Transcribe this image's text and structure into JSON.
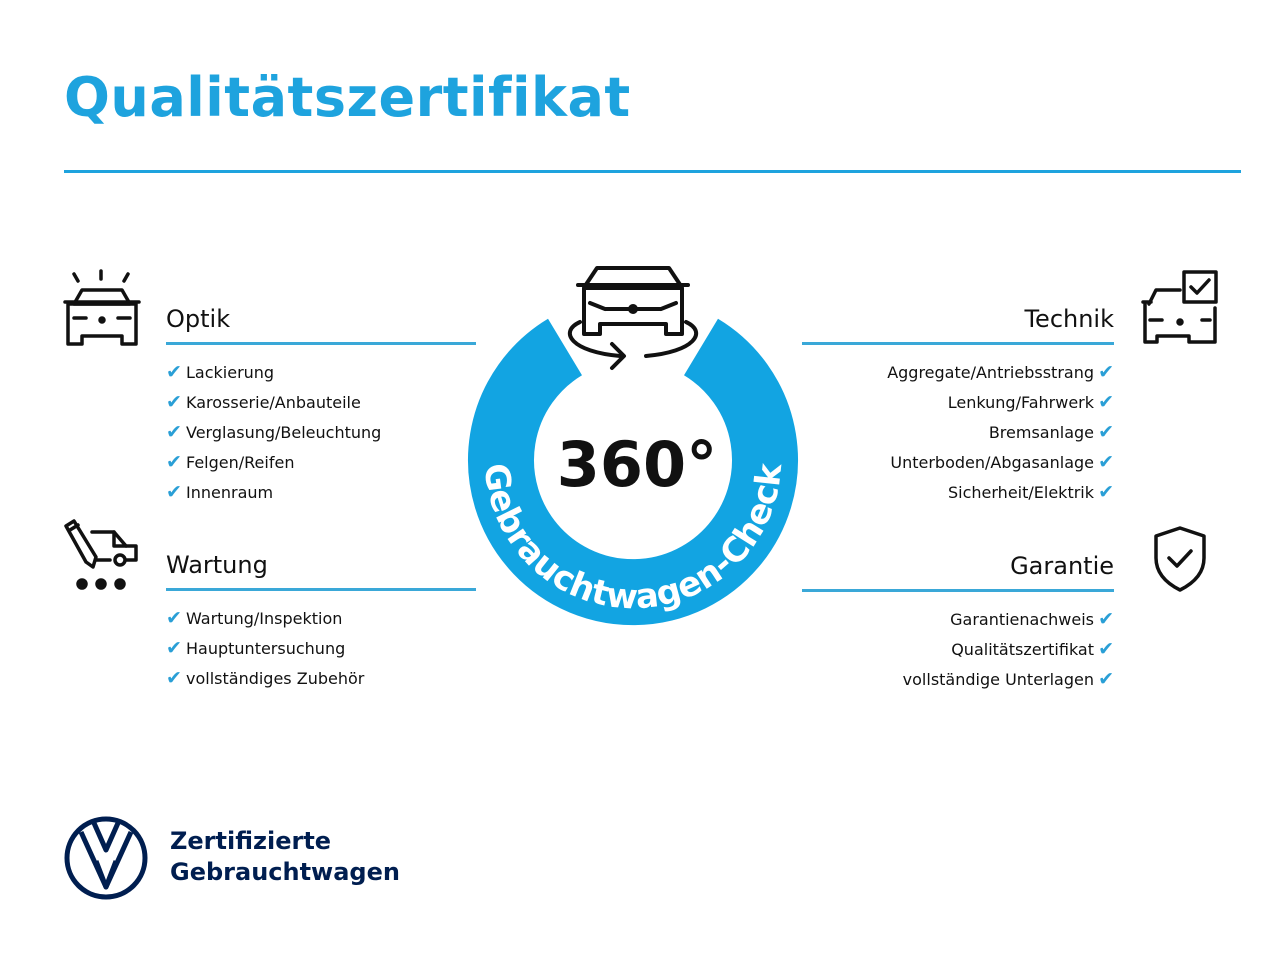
{
  "title": "Qualitätszertifikat",
  "center": {
    "degrees": "360°",
    "arc_text": "Gebrauchtwagen-Check"
  },
  "sections": {
    "optik": {
      "heading": "Optik",
      "items": [
        "Lackierung",
        "Karosserie/Anbauteile",
        "Verglasung/Beleuchtung",
        "Felgen/Reifen",
        "Innenraum"
      ]
    },
    "wartung": {
      "heading": "Wartung",
      "items": [
        "Wartung/Inspektion",
        "Hauptuntersuchung",
        "vollständiges Zubehör"
      ]
    },
    "technik": {
      "heading": "Technik",
      "items": [
        "Aggregate/Antriebsstrang",
        "Lenkung/Fahrwerk",
        "Bremsanlage",
        "Unterboden/Abgasanlage",
        "Sicherheit/Elektrik"
      ]
    },
    "garantie": {
      "heading": "Garantie",
      "items": [
        "Garantienachweis",
        "Qualitätszertifikat",
        "vollständige Unterlagen"
      ]
    }
  },
  "check_glyph": "✔",
  "footer": {
    "line1": "Zertifizierte",
    "line2": "Gebrauchtwagen",
    "logo": "VW"
  },
  "colors": {
    "accent": "#1ea3de",
    "ring": "#12a4e2",
    "brand_dark": "#001e50"
  }
}
